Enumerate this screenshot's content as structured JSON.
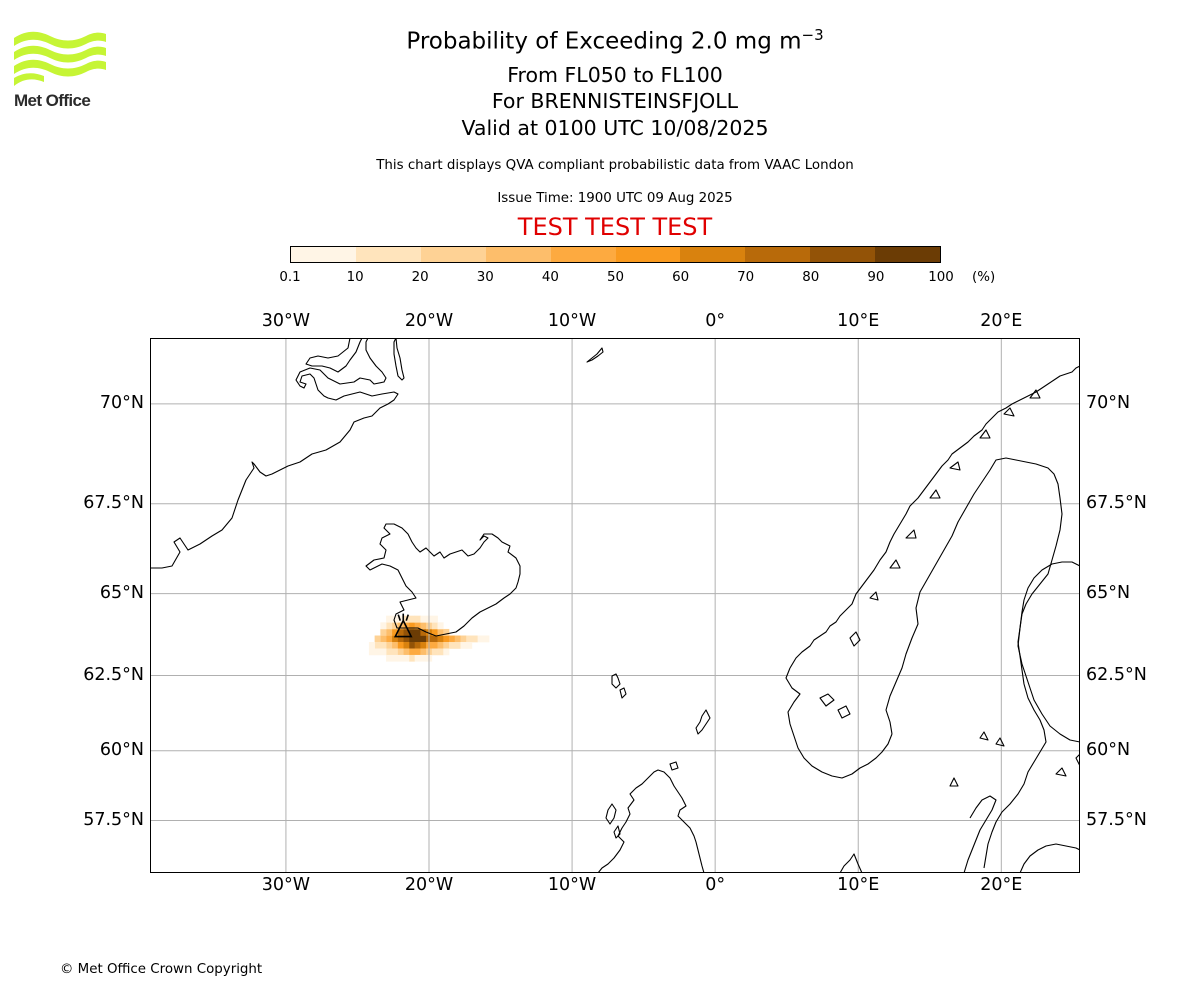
{
  "header": {
    "title_prefix": "Probability of Exceeding 2.0 mg m",
    "title_exponent": "−3",
    "levels": "From FL050 to FL100",
    "volcano": "For BRENNISTEINSFJOLL",
    "valid": "Valid at 0100 UTC 10/08/2025",
    "source_note": "This chart displays QVA compliant probabilistic data from VAAC London",
    "issue_time": "Issue Time: 1900 UTC 09 Aug 2025",
    "test_banner": "TEST TEST TEST",
    "test_color": "#e00000"
  },
  "logo": {
    "text": "Met Office",
    "icon": "met-office-waves-logo",
    "accent": "#c6f535"
  },
  "colorbar": {
    "ticks": [
      "0.1",
      "10",
      "20",
      "30",
      "40",
      "50",
      "60",
      "70",
      "80",
      "90",
      "100"
    ],
    "unit": "(%)",
    "colors": [
      "#fff5e6",
      "#ffe4bc",
      "#fed295",
      "#fdbe6b",
      "#fdaa40",
      "#f99a1f",
      "#d9820e",
      "#b86a0a",
      "#935307",
      "#6b3c05"
    ]
  },
  "map": {
    "lon_labels": [
      {
        "lon": -30,
        "text": "30°W"
      },
      {
        "lon": -20,
        "text": "20°W"
      },
      {
        "lon": -10,
        "text": "10°W"
      },
      {
        "lon": 0,
        "text": "0°"
      },
      {
        "lon": 10,
        "text": "10°E"
      },
      {
        "lon": 20,
        "text": "20°E"
      }
    ],
    "lat_labels": [
      {
        "lat": 70,
        "text": "70°N"
      },
      {
        "lat": 67.5,
        "text": "67.5°N"
      },
      {
        "lat": 65,
        "text": "65°N"
      },
      {
        "lat": 62.5,
        "text": "62.5°N"
      },
      {
        "lat": 60,
        "text": "60°N"
      },
      {
        "lat": 57.5,
        "text": "57.5°N"
      }
    ],
    "extent": {
      "lon_min": -39.5,
      "lon_max": 25.5,
      "lat_min": 55.5,
      "lat_max": 71.5
    },
    "volcano_location": {
      "lon": -21.8,
      "lat": 63.9
    },
    "plume_cells": [
      {
        "lon": -20.8,
        "lat": 63.65,
        "prob": 95
      },
      {
        "lon": -21.2,
        "lat": 63.65,
        "prob": 95
      },
      {
        "lon": -20.4,
        "lat": 63.65,
        "prob": 90
      },
      {
        "lon": -21.6,
        "lat": 63.65,
        "prob": 88
      },
      {
        "lon": -21.2,
        "lat": 63.85,
        "prob": 92
      },
      {
        "lon": -20.8,
        "lat": 63.85,
        "prob": 90
      },
      {
        "lon": -21.6,
        "lat": 63.85,
        "prob": 85
      },
      {
        "lon": -20.4,
        "lat": 63.85,
        "prob": 75
      },
      {
        "lon": -20.0,
        "lat": 63.85,
        "prob": 65
      },
      {
        "lon": -20.0,
        "lat": 63.65,
        "prob": 75
      },
      {
        "lon": -19.6,
        "lat": 63.65,
        "prob": 72
      },
      {
        "lon": -19.2,
        "lat": 63.65,
        "prob": 65
      },
      {
        "lon": -18.8,
        "lat": 63.65,
        "prob": 55
      },
      {
        "lon": -22.0,
        "lat": 63.65,
        "prob": 78
      },
      {
        "lon": -22.4,
        "lat": 63.65,
        "prob": 62
      },
      {
        "lon": -22.8,
        "lat": 63.65,
        "prob": 45
      },
      {
        "lon": -23.2,
        "lat": 63.65,
        "prob": 30
      },
      {
        "lon": -23.6,
        "lat": 63.65,
        "prob": 20
      },
      {
        "lon": -22.0,
        "lat": 63.85,
        "prob": 70
      },
      {
        "lon": -22.4,
        "lat": 63.85,
        "prob": 50
      },
      {
        "lon": -22.8,
        "lat": 63.85,
        "prob": 35
      },
      {
        "lon": -23.2,
        "lat": 63.85,
        "prob": 20
      },
      {
        "lon": -19.6,
        "lat": 63.85,
        "prob": 50
      },
      {
        "lon": -19.2,
        "lat": 63.85,
        "prob": 35
      },
      {
        "lon": -18.8,
        "lat": 63.85,
        "prob": 25
      },
      {
        "lon": -18.4,
        "lat": 63.65,
        "prob": 40
      },
      {
        "lon": -18.0,
        "lat": 63.65,
        "prob": 30
      },
      {
        "lon": -17.6,
        "lat": 63.65,
        "prob": 25
      },
      {
        "lon": -17.2,
        "lat": 63.65,
        "prob": 15
      },
      {
        "lon": -16.8,
        "lat": 63.65,
        "prob": 10
      },
      {
        "lon": -16.4,
        "lat": 63.65,
        "prob": 5
      },
      {
        "lon": -16.0,
        "lat": 63.65,
        "prob": 3
      },
      {
        "lon": -21.2,
        "lat": 63.45,
        "prob": 80
      },
      {
        "lon": -20.8,
        "lat": 63.45,
        "prob": 75
      },
      {
        "lon": -21.6,
        "lat": 63.45,
        "prob": 65
      },
      {
        "lon": -20.4,
        "lat": 63.45,
        "prob": 60
      },
      {
        "lon": -22.0,
        "lat": 63.45,
        "prob": 50
      },
      {
        "lon": -20.0,
        "lat": 63.45,
        "prob": 45
      },
      {
        "lon": -19.6,
        "lat": 63.45,
        "prob": 40
      },
      {
        "lon": -19.2,
        "lat": 63.45,
        "prob": 35
      },
      {
        "lon": -22.4,
        "lat": 63.45,
        "prob": 35
      },
      {
        "lon": -22.8,
        "lat": 63.45,
        "prob": 25
      },
      {
        "lon": -23.2,
        "lat": 63.45,
        "prob": 15
      },
      {
        "lon": -23.6,
        "lat": 63.45,
        "prob": 10
      },
      {
        "lon": -24.0,
        "lat": 63.45,
        "prob": 5
      },
      {
        "lon": -18.8,
        "lat": 63.45,
        "prob": 25
      },
      {
        "lon": -18.4,
        "lat": 63.45,
        "prob": 18
      },
      {
        "lon": -18.0,
        "lat": 63.45,
        "prob": 12
      },
      {
        "lon": -17.6,
        "lat": 63.45,
        "prob": 8
      },
      {
        "lon": -17.2,
        "lat": 63.45,
        "prob": 5
      },
      {
        "lon": -21.2,
        "lat": 63.25,
        "prob": 45
      },
      {
        "lon": -20.8,
        "lat": 63.25,
        "prob": 40
      },
      {
        "lon": -21.6,
        "lat": 63.25,
        "prob": 35
      },
      {
        "lon": -20.4,
        "lat": 63.25,
        "prob": 30
      },
      {
        "lon": -22.0,
        "lat": 63.25,
        "prob": 25
      },
      {
        "lon": -20.0,
        "lat": 63.25,
        "prob": 22
      },
      {
        "lon": -19.6,
        "lat": 63.25,
        "prob": 15
      },
      {
        "lon": -22.4,
        "lat": 63.25,
        "prob": 18
      },
      {
        "lon": -22.8,
        "lat": 63.25,
        "prob": 10
      },
      {
        "lon": -23.2,
        "lat": 63.25,
        "prob": 6
      },
      {
        "lon": -23.6,
        "lat": 63.25,
        "prob": 3
      },
      {
        "lon": -19.2,
        "lat": 63.25,
        "prob": 10
      },
      {
        "lon": -18.8,
        "lat": 63.25,
        "prob": 6
      },
      {
        "lon": -24.0,
        "lat": 63.25,
        "prob": 2
      },
      {
        "lon": -21.2,
        "lat": 63.05,
        "prob": 10
      },
      {
        "lon": -20.8,
        "lat": 63.05,
        "prob": 8
      },
      {
        "lon": -21.6,
        "lat": 63.05,
        "prob": 8
      },
      {
        "lon": -20.4,
        "lat": 63.05,
        "prob": 5
      },
      {
        "lon": -22.0,
        "lat": 63.05,
        "prob": 5
      },
      {
        "lon": -22.4,
        "lat": 63.05,
        "prob": 3
      },
      {
        "lon": -22.8,
        "lat": 63.05,
        "prob": 2
      },
      {
        "lon": -20.0,
        "lat": 63.05,
        "prob": 3
      },
      {
        "lon": -21.2,
        "lat": 64.05,
        "prob": 55
      },
      {
        "lon": -20.8,
        "lat": 64.05,
        "prob": 45
      },
      {
        "lon": -21.6,
        "lat": 64.05,
        "prob": 45
      },
      {
        "lon": -20.4,
        "lat": 64.05,
        "prob": 35
      },
      {
        "lon": -22.0,
        "lat": 64.05,
        "prob": 35
      },
      {
        "lon": -20.0,
        "lat": 64.05,
        "prob": 25
      },
      {
        "lon": -22.4,
        "lat": 64.05,
        "prob": 20
      },
      {
        "lon": -19.6,
        "lat": 64.05,
        "prob": 15
      },
      {
        "lon": -22.8,
        "lat": 64.05,
        "prob": 10
      },
      {
        "lon": -19.2,
        "lat": 64.05,
        "prob": 8
      },
      {
        "lon": -23.2,
        "lat": 64.05,
        "prob": 5
      },
      {
        "lon": -21.2,
        "lat": 64.25,
        "prob": 15
      },
      {
        "lon": -20.8,
        "lat": 64.25,
        "prob": 12
      },
      {
        "lon": -21.6,
        "lat": 64.25,
        "prob": 10
      },
      {
        "lon": -20.4,
        "lat": 64.25,
        "prob": 8
      },
      {
        "lon": -22.0,
        "lat": 64.25,
        "prob": 8
      },
      {
        "lon": -20.0,
        "lat": 64.25,
        "prob": 5
      },
      {
        "lon": -22.4,
        "lat": 64.25,
        "prob": 4
      },
      {
        "lon": -19.6,
        "lat": 64.25,
        "prob": 3
      },
      {
        "lon": -22.8,
        "lat": 64.25,
        "prob": 2
      }
    ]
  },
  "footer": {
    "copyright": "© Met Office Crown Copyright"
  }
}
